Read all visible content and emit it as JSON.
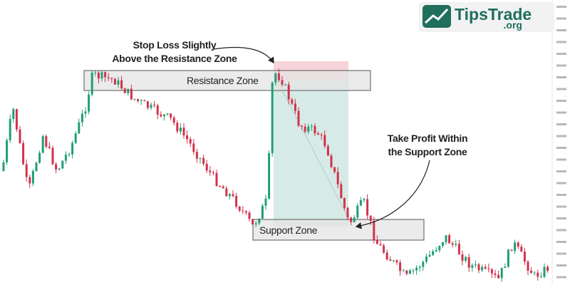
{
  "logo": {
    "name": "TipsTrade",
    "suffix": ".org"
  },
  "zones": {
    "resistance": "Resistance Zone",
    "support": "Support Zone"
  },
  "annotations": {
    "stop_loss": [
      "Stop Loss Slightly",
      "Above the Resistance Zone"
    ],
    "take_profit": [
      "Take Profit Within",
      "the Support Zone"
    ]
  }
}
